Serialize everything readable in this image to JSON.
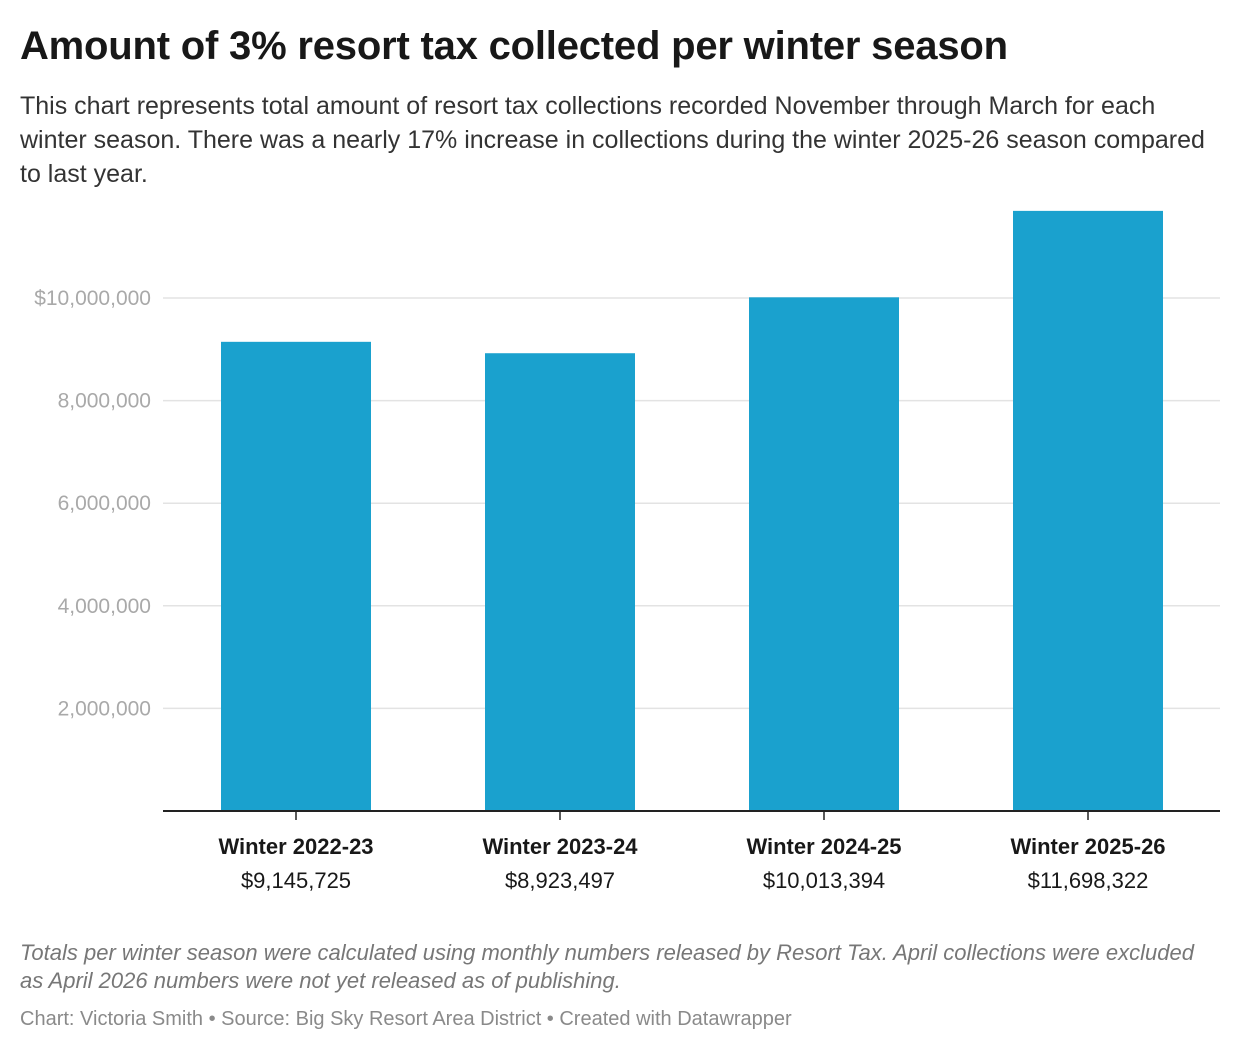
{
  "title": "Amount of 3% resort tax collected per winter season",
  "subtitle": "This chart represents total amount of resort tax collections recorded November through March for each winter season. There was a nearly 17% increase in collections during the winter 2025-26 season compared to last year.",
  "chart_data": {
    "type": "bar",
    "categories": [
      "Winter 2022-23",
      "Winter 2023-24",
      "Winter 2024-25",
      "Winter 2025-26"
    ],
    "values": [
      9145725,
      8923497,
      10013394,
      11698322
    ],
    "value_labels": [
      "$9,145,725",
      "$8,923,497",
      "$10,013,394",
      "$11,698,322"
    ],
    "y_ticks": [
      {
        "value": 2000000,
        "label": "2,000,000"
      },
      {
        "value": 4000000,
        "label": "4,000,000"
      },
      {
        "value": 6000000,
        "label": "6,000,000"
      },
      {
        "value": 8000000,
        "label": "8,000,000"
      },
      {
        "value": 10000000,
        "label": "$10,000,000"
      }
    ],
    "ylim": [
      0,
      11698322
    ],
    "grid": true,
    "bar_color": "#1aa1ce",
    "grid_color": "#e3e3e3",
    "axis_color": "#222222"
  },
  "note": "Totals per winter season were calculated using monthly numbers released by Resort Tax. April collections were excluded as April 2026 numbers were not yet released as of publishing.",
  "footer": "Chart: Victoria Smith • Source: Big Sky Resort Area District • Created with Datawrapper"
}
